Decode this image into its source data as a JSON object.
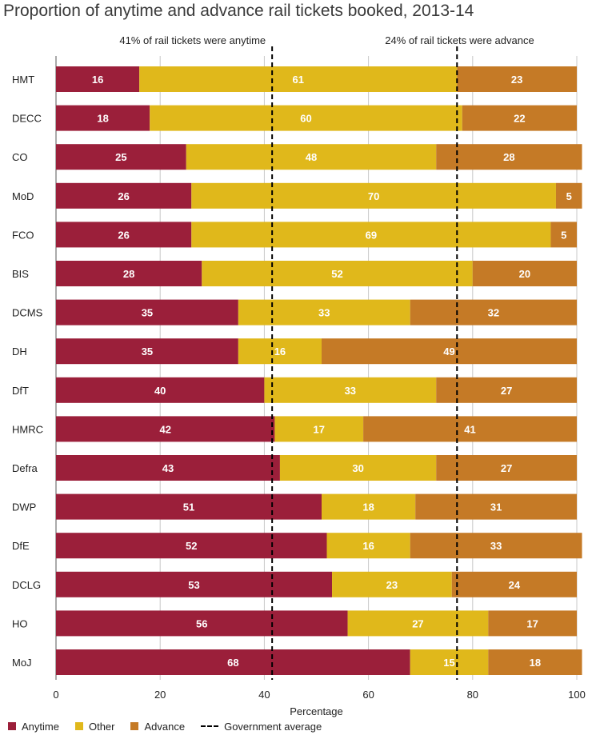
{
  "chart_data": {
    "type": "bar",
    "stacked": true,
    "orientation": "horizontal",
    "title": "Proportion of anytime and advance rail tickets booked, 2013-14",
    "xlabel": "Percentage",
    "ylabel": "",
    "xlim": [
      0,
      100
    ],
    "xticks": [
      0,
      20,
      40,
      60,
      80,
      100
    ],
    "grid": true,
    "categories": [
      "HMT",
      "DECC",
      "CO",
      "MoD",
      "FCO",
      "BIS",
      "DCMS",
      "DH",
      "DfT",
      "HMRC",
      "Defra",
      "DWP",
      "DfE",
      "DCLG",
      "HO",
      "MoJ"
    ],
    "series": [
      {
        "name": "Anytime",
        "color": "#9b1f3a",
        "values": [
          16,
          18,
          25,
          26,
          26,
          28,
          35,
          35,
          40,
          42,
          43,
          51,
          52,
          53,
          56,
          68
        ]
      },
      {
        "name": "Other",
        "color": "#e0b81b",
        "values": [
          61,
          60,
          48,
          70,
          69,
          52,
          33,
          16,
          33,
          17,
          30,
          18,
          16,
          23,
          27,
          15
        ]
      },
      {
        "name": "Advance",
        "color": "#c57a26",
        "values": [
          23,
          22,
          28,
          5,
          5,
          20,
          32,
          49,
          27,
          41,
          27,
          31,
          33,
          24,
          17,
          18
        ]
      }
    ],
    "reference_lines": [
      {
        "name": "anytime-average",
        "value": 41.5,
        "label": "41% of rail tickets were anytime"
      },
      {
        "name": "advance-average",
        "value": 77,
        "label": "24% of rail tickets were advance"
      }
    ],
    "legend": {
      "position": "bottom",
      "items": [
        {
          "label": "Anytime",
          "color": "#9b1f3a"
        },
        {
          "label": "Other",
          "color": "#e0b81b"
        },
        {
          "label": "Advance",
          "color": "#c57a26"
        },
        {
          "label": "Government average",
          "style": "dashed"
        }
      ]
    }
  }
}
